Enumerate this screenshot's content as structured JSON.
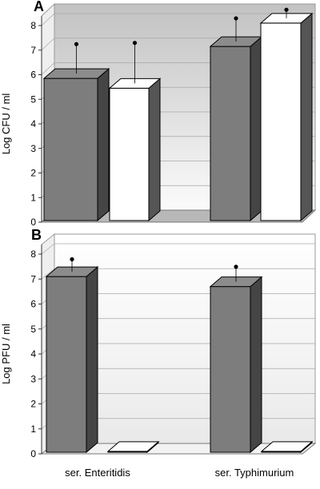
{
  "chart_data": [
    {
      "type": "bar",
      "panel_label": "A",
      "ylabel": "Log CFU / ml",
      "ylim": [
        0,
        8
      ],
      "yticks": [
        0,
        1,
        2,
        3,
        4,
        5,
        6,
        7,
        8
      ],
      "categories": [
        "ser. Enteritidis",
        "ser. Typhimurium"
      ],
      "series": [
        {
          "values": [
            5.85,
            7.15
          ],
          "error": [
            1.2,
            0.95
          ],
          "color": "#7d7d7d"
        },
        {
          "values": [
            5.45,
            8.1
          ],
          "error": [
            1.65,
            0.35
          ],
          "color": "#ffffff"
        }
      ],
      "grid": true,
      "style": "3d"
    },
    {
      "type": "bar",
      "panel_label": "B",
      "ylabel": "Log PFU / ml",
      "ylim": [
        0,
        8
      ],
      "yticks": [
        0,
        1,
        2,
        3,
        4,
        5,
        6,
        7,
        8
      ],
      "categories": [
        "ser. Enteritidis",
        "ser. Typhimurium"
      ],
      "series": [
        {
          "values": [
            7.1,
            6.7
          ],
          "error": [
            0.5,
            0.6
          ],
          "color": "#7d7d7d"
        },
        {
          "values": [
            0.1,
            0.1
          ],
          "error": [
            0,
            0
          ],
          "color": "#ffffff"
        }
      ],
      "grid": true,
      "style": "3d"
    }
  ]
}
